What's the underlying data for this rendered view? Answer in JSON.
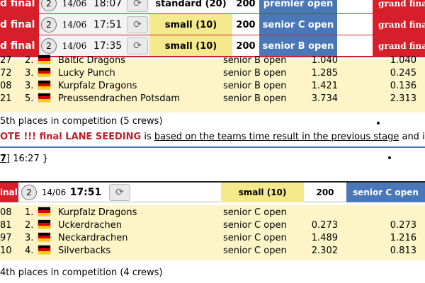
{
  "header_rows": [
    {
      "final": "d final",
      "num": "2",
      "date": "14/06",
      "time": "18:07",
      "category": "standard (20)",
      "count": "200",
      "division": "premier open",
      "grand": "grand final",
      "cat_bg": "#fcfcfc"
    },
    {
      "final": "d final",
      "num": "2",
      "date": "14/06",
      "time": "17:51",
      "category": "small (10)",
      "count": "200",
      "division": "senior C open",
      "grand": "grand final",
      "cat_bg": "#f4e98c"
    },
    {
      "final": "d final",
      "num": "2",
      "date": "14/06",
      "time": "17:35",
      "category": "small (10)",
      "count": "200",
      "division": "senior B open",
      "grand": "grand final",
      "cat_bg": "#f4e98c"
    }
  ],
  "colors": {
    "final_red": "#d61f2b",
    "division_blue": "#4a77b8",
    "category_yellow": "#f4e98c",
    "results_bg": "#fdf5c8"
  },
  "icons": {
    "refresh": "refresh-icon",
    "flag": "german-flag-icon"
  },
  "refresh_glyph": "⟳",
  "section1": {
    "rows": [
      {
        "id": "27",
        "pos": "2.",
        "name": "Baltic Dragons",
        "category": "senior B open",
        "time": "1.040",
        "diff": "1.040"
      },
      {
        "id": "72",
        "pos": "3.",
        "name": "Lucky Punch",
        "category": "senior B open",
        "time": "1.285",
        "diff": "0.245"
      },
      {
        "id": "08",
        "pos": "3.",
        "name": "Kurpfalz Dragons",
        "category": "senior B open",
        "time": "1.421",
        "diff": "0.136"
      },
      {
        "id": "21",
        "pos": "5.",
        "name": "Preussendrachen Potsdam",
        "category": "senior B open",
        "time": "3.734",
        "diff": "2.313"
      }
    ],
    "places_text": "5th places in competition (5 crews)",
    "note_prefix": "OTE !!! final LANE SEEDING",
    "note_is": " is ",
    "note_underlined": "based on the teams time result in the previous stage",
    "note_suffix": " and is n",
    "link_text": "7",
    "time_suffix": "] 16:27 }"
  },
  "header2": {
    "final": "inal",
    "num": "2",
    "date": "14/06",
    "time": "17:51",
    "category": "small (10)",
    "count": "200",
    "division": "senior C open"
  },
  "section2": {
    "rows": [
      {
        "id": "08",
        "pos": "1.",
        "name": "Kurpfalz Dragons",
        "category": "senior C open",
        "time": "",
        "diff": ""
      },
      {
        "id": "81",
        "pos": "2.",
        "name": "Uckerdrachen",
        "category": "senior C open",
        "time": "0.273",
        "diff": "0.273"
      },
      {
        "id": "97",
        "pos": "3.",
        "name": "Neckardrachen",
        "category": "senior C open",
        "time": "1.489",
        "diff": "1.216"
      },
      {
        "id": "10",
        "pos": "4.",
        "name": "Silverbacks",
        "category": "senior C open",
        "time": "2.302",
        "diff": "0.813"
      }
    ],
    "places_text": "4th places in competition (4 crews)"
  }
}
